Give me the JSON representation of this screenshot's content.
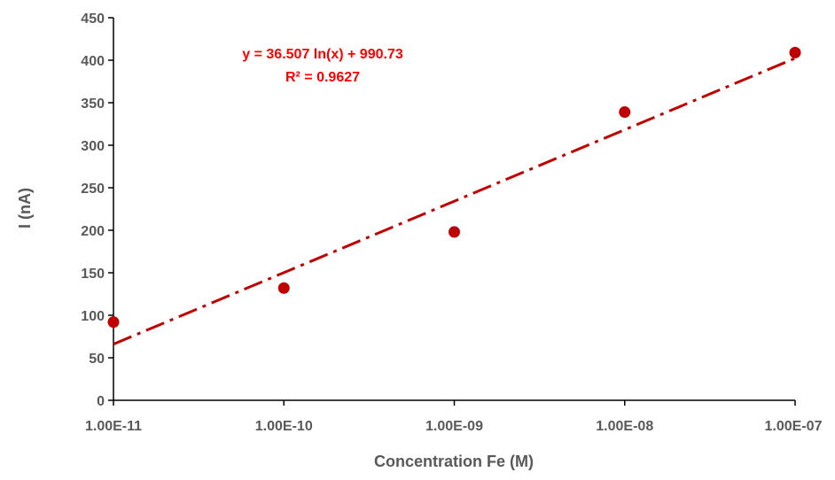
{
  "chart_data": {
    "type": "scatter",
    "title": "",
    "xlabel": "Concentration Fe (M)",
    "ylabel": "I (nA)",
    "x_scale": "log",
    "x_ticks": [
      1e-11,
      1e-10,
      1e-09,
      1e-08,
      1e-07
    ],
    "x_tick_labels": [
      "1.00E-11",
      "1.00E-10",
      "1.00E-09",
      "1.00E-08",
      "1.00E-07"
    ],
    "y_ticks": [
      0,
      50,
      100,
      150,
      200,
      250,
      300,
      350,
      400,
      450
    ],
    "y_tick_labels": [
      "0",
      "50",
      "100",
      "150",
      "200",
      "250",
      "300",
      "350",
      "400",
      "450"
    ],
    "xlim": [
      1e-11,
      1e-07
    ],
    "ylim": [
      0,
      450
    ],
    "grid": false,
    "series": [
      {
        "x": [
          1e-11,
          1e-10,
          1e-09,
          1e-08,
          1e-07
        ],
        "y": [
          92,
          132,
          198,
          339,
          409
        ],
        "color": "#C00000"
      }
    ],
    "trendline": {
      "type": "logarithmic",
      "slope": 36.507,
      "intercept": 990.73,
      "color": "#C00000",
      "style": "dash-dot",
      "equation": "y = 36.507 ln(x) + 990.73",
      "r_squared": "R² = 0.9627"
    },
    "colors": {
      "axis": "#000000",
      "text": "#595959",
      "equation": "#FF0000"
    }
  }
}
